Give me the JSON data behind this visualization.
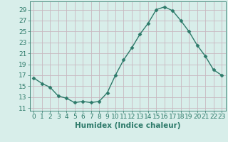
{
  "x": [
    0,
    1,
    2,
    3,
    4,
    5,
    6,
    7,
    8,
    9,
    10,
    11,
    12,
    13,
    14,
    15,
    16,
    17,
    18,
    19,
    20,
    21,
    22,
    23
  ],
  "y": [
    16.5,
    15.5,
    14.8,
    13.2,
    12.8,
    12.0,
    12.2,
    12.0,
    12.2,
    13.8,
    17.0,
    19.8,
    22.0,
    24.5,
    26.5,
    29.0,
    29.5,
    28.8,
    27.0,
    25.0,
    22.5,
    20.5,
    18.0,
    17.0
  ],
  "line_color": "#2d7a6a",
  "marker": "D",
  "marker_size": 2.5,
  "bg_color": "#d8eeea",
  "grid_color": "#c8b8c0",
  "xlabel": "Humidex (Indice chaleur)",
  "ylabel": "",
  "xlim": [
    -0.5,
    23.5
  ],
  "ylim": [
    10.5,
    30.5
  ],
  "yticks": [
    11,
    13,
    15,
    17,
    19,
    21,
    23,
    25,
    27,
    29
  ],
  "xticks": [
    0,
    1,
    2,
    3,
    4,
    5,
    6,
    7,
    8,
    9,
    10,
    11,
    12,
    13,
    14,
    15,
    16,
    17,
    18,
    19,
    20,
    21,
    22,
    23
  ],
  "tick_color": "#2d7a6a",
  "label_color": "#2d7a6a",
  "font_size": 6.5,
  "xlabel_fontsize": 7.5,
  "linewidth": 1.0
}
